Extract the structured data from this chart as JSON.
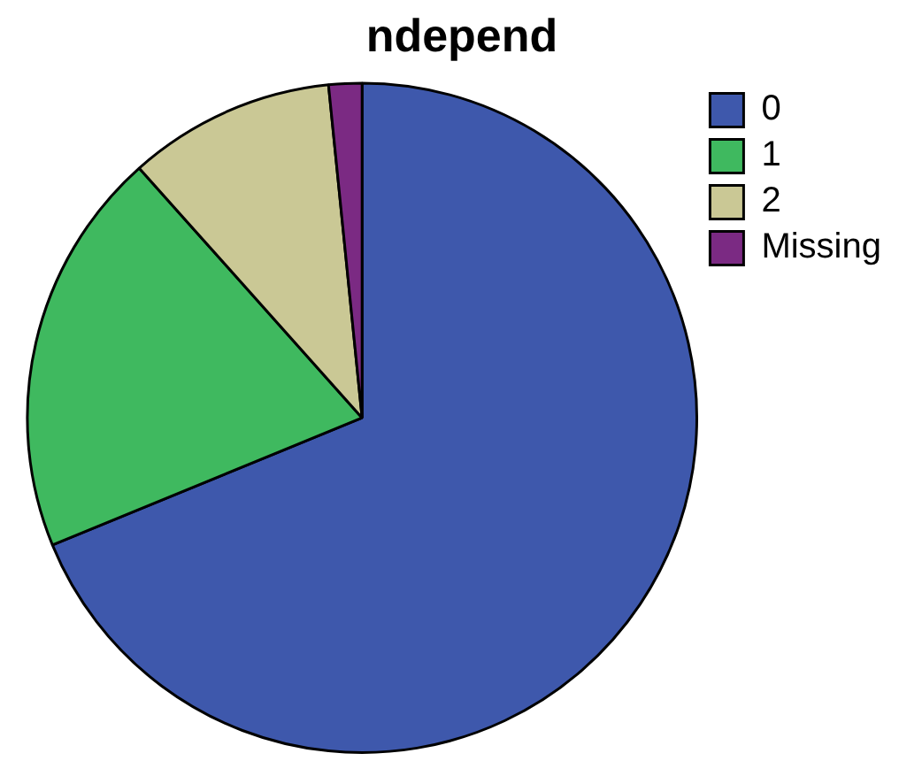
{
  "chart_data": {
    "type": "pie",
    "title": "ndepend",
    "categories": [
      "0",
      "1",
      "2",
      "Missing"
    ],
    "values": [
      68.8,
      19.6,
      10.0,
      1.6
    ],
    "colors": [
      "#3e58ac",
      "#3fb95f",
      "#cac895",
      "#7b2a83"
    ],
    "legend": "top right"
  }
}
